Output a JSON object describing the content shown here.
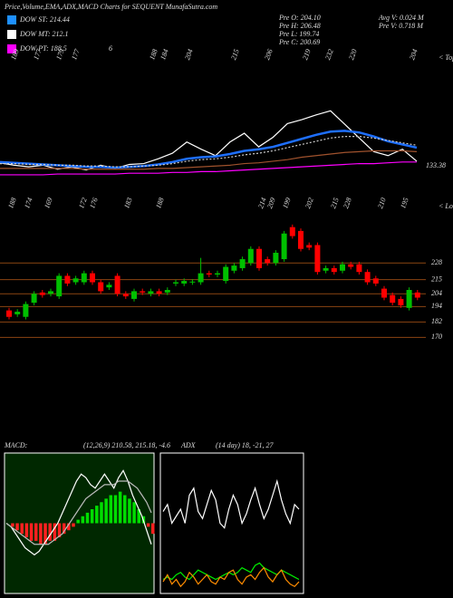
{
  "header": {
    "title": "Price,Volume,EMA,ADX,MACD Charts for SEQUENT MunafaSutra.com",
    "legend": [
      {
        "label": "DOW ST: 214.44",
        "color": "#1e90ff"
      },
      {
        "label": "DOW MT: 212.1",
        "color": "#ffffff"
      },
      {
        "label": "DOW PT: 188.5",
        "color": "#ff00ff"
      }
    ],
    "legend_note": "6",
    "info": [
      "Pre O: 204.10",
      "Pre H: 206.48",
      "Pre L: 199.74",
      "Pre C: 200.69",
      "Avg V: 0.024 M",
      "Pre V: 0.718 M"
    ]
  },
  "chart_data": [
    {
      "type": "line",
      "ylim": [
        150,
        320
      ],
      "series": [
        {
          "color": "#ffffff",
          "values": [
            173,
            170,
            168,
            170,
            165,
            168,
            164,
            170,
            166,
            171,
            172,
            178,
            185,
            199,
            190,
            182,
            199,
            210,
            193,
            205,
            222,
            227,
            233,
            238,
            221,
            204,
            187,
            182,
            190,
            175
          ]
        },
        {
          "color": "#1e6fff",
          "values": [
            174,
            173,
            172,
            171,
            170,
            169,
            168,
            168,
            167,
            168,
            169,
            171,
            174,
            178,
            180,
            181,
            184,
            188,
            190,
            193,
            198,
            203,
            208,
            212,
            213,
            211,
            206,
            200,
            196,
            192
          ]
        },
        {
          "color": "#cccccc",
          "dashed": true,
          "values": [
            172,
            172,
            171,
            171,
            170,
            170,
            169,
            169,
            168,
            168,
            169,
            170,
            172,
            175,
            177,
            178,
            180,
            183,
            185,
            188,
            192,
            196,
            200,
            204,
            206,
            206,
            204,
            201,
            198,
            195
          ]
        },
        {
          "color": "#a0522d",
          "values": [
            166,
            166,
            166,
            166,
            166,
            166,
            165,
            165,
            165,
            165,
            165,
            166,
            166,
            167,
            168,
            169,
            170,
            172,
            173,
            175,
            177,
            180,
            182,
            184,
            186,
            187,
            188,
            188,
            188,
            187
          ]
        },
        {
          "color": "#ff00ff",
          "values": [
            158,
            158,
            158,
            158,
            159,
            159,
            159,
            159,
            159,
            160,
            160,
            160,
            161,
            161,
            162,
            162,
            163,
            164,
            165,
            166,
            167,
            168,
            169,
            170,
            171,
            172,
            172,
            173,
            174,
            174
          ]
        }
      ],
      "tops": [
        189,
        177,
        179,
        177,
        188,
        184,
        204,
        215,
        206,
        219,
        232,
        220,
        204
      ],
      "tops_label": "< Tops",
      "last_label": "133.38"
    },
    {
      "type": "candlestick",
      "ylim": [
        154,
        260
      ],
      "yticks": [
        228,
        215,
        204,
        194,
        182,
        170
      ],
      "up_color": "#00c000",
      "down_color": "#ff0000",
      "grid_color": "#8b4513",
      "open": [
        191,
        188,
        186,
        197,
        205,
        204,
        202,
        218,
        213,
        213,
        220,
        213,
        209,
        218,
        204,
        200,
        206,
        204,
        206,
        205,
        212,
        212,
        213,
        213,
        220,
        219,
        214,
        222,
        224,
        228,
        239,
        231,
        228,
        231,
        256,
        253,
        242,
        242,
        222,
        224,
        222,
        227,
        227,
        221,
        216,
        208,
        203,
        200,
        193,
        205
      ],
      "high": [
        193,
        192,
        198,
        206,
        207,
        208,
        220,
        220,
        218,
        222,
        222,
        215,
        213,
        220,
        206,
        208,
        208,
        208,
        208,
        209,
        215,
        216,
        215.5,
        232,
        222,
        222,
        227,
        228,
        233,
        241,
        241,
        233,
        238,
        253,
        258,
        255,
        244,
        244,
        226,
        226,
        229,
        229,
        229,
        223,
        218,
        210,
        205,
        202,
        209,
        207
      ],
      "low": [
        184,
        186,
        184,
        195,
        201,
        202,
        200,
        210,
        211,
        211,
        211,
        204,
        207,
        202,
        200,
        198,
        203,
        202,
        202,
        203,
        210,
        210,
        211,
        211,
        217,
        217,
        212,
        220,
        222,
        226,
        222,
        226,
        226,
        229,
        247,
        237,
        238,
        219,
        220,
        219,
        220,
        223,
        219,
        211,
        210,
        199,
        195,
        193,
        191,
        199
      ],
      "close": [
        186,
        190,
        196,
        204,
        203,
        206,
        218,
        212,
        216,
        220,
        213,
        206,
        211,
        204,
        202,
        206,
        205,
        206,
        204,
        207,
        213,
        214,
        213.5,
        220,
        219,
        220,
        225,
        226,
        231,
        239,
        224,
        228,
        236,
        251,
        249,
        239,
        240,
        221,
        224,
        221,
        227,
        225,
        221,
        213,
        212,
        201,
        197,
        195,
        207,
        201
      ],
      "lows": [
        188,
        174,
        169,
        172,
        176,
        183,
        188,
        214,
        209,
        199,
        202,
        215,
        228,
        210,
        195
      ],
      "lows_label": "< Lows"
    },
    {
      "type": "macd",
      "title": "MACD:",
      "subtitle": "(12,26,9) 210.58, 215.18, -4.6",
      "ylim": [
        -20,
        20
      ],
      "histogram": {
        "up_color": "#00dd00",
        "down_color": "#ff2020",
        "values": [
          0,
          -1,
          -2,
          -3,
          -4,
          -5,
          -5,
          -6,
          -6,
          -5,
          -5,
          -4,
          -3,
          -2,
          -1,
          1,
          2,
          3,
          4,
          5,
          6,
          7,
          8,
          8,
          9,
          8,
          7,
          6,
          4,
          2,
          -1,
          -3
        ]
      },
      "series": [
        {
          "color": "#ffffff",
          "values": [
            0,
            -1,
            -3,
            -5,
            -7,
            -8,
            -9,
            -8,
            -6,
            -4,
            -2,
            0,
            3,
            6,
            9,
            12,
            14,
            13,
            11,
            10,
            12,
            14,
            12,
            10,
            13,
            15,
            12,
            8,
            5,
            2,
            -2,
            -6
          ]
        },
        {
          "color": "#bbbbbb",
          "values": [
            0,
            -1,
            -2,
            -3,
            -4,
            -5,
            -6,
            -6,
            -6,
            -6,
            -5,
            -4,
            -3,
            -1,
            1,
            3,
            5,
            7,
            8,
            9,
            10,
            11,
            11,
            11,
            12,
            12,
            12,
            11,
            10,
            8,
            6,
            3
          ]
        }
      ]
    },
    {
      "type": "adx",
      "title": "ADX",
      "subtitle": "(14 day) 18, -21, 27",
      "ylim": [
        0,
        60
      ],
      "series": [
        {
          "color": "#ffffff",
          "values": [
            35,
            38,
            30,
            33,
            36,
            30,
            42,
            45,
            35,
            32,
            38,
            44,
            40,
            30,
            28,
            36,
            42,
            38,
            30,
            34,
            40,
            45,
            38,
            32,
            36,
            42,
            48,
            40,
            34,
            30,
            38,
            36
          ]
        },
        {
          "color": "#00ee00",
          "values": [
            6,
            7,
            6,
            8,
            9,
            7,
            6,
            8,
            10,
            9,
            8,
            7,
            6,
            7,
            8,
            9,
            8,
            9,
            11,
            10,
            9,
            12,
            13,
            11,
            10,
            9,
            8,
            10,
            9,
            8,
            7,
            6
          ]
        },
        {
          "color": "#ff8c00",
          "values": [
            5,
            8,
            4,
            6,
            3,
            5,
            9,
            7,
            4,
            6,
            8,
            5,
            4,
            7,
            6,
            9,
            10,
            6,
            4,
            7,
            8,
            6,
            9,
            11,
            7,
            5,
            8,
            10,
            6,
            4,
            3,
            5
          ]
        }
      ]
    }
  ]
}
